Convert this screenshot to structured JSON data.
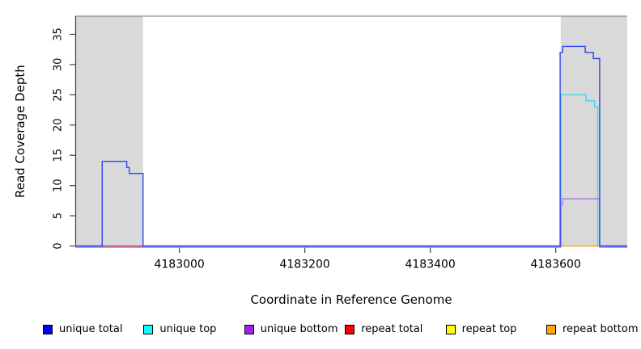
{
  "figure": {
    "xlabel": "Coordinate in Reference Genome",
    "ylabel": "Read Coverage Depth"
  },
  "chart_data": {
    "type": "line",
    "subtype": "step",
    "title": "",
    "xlabel": "Coordinate in Reference Genome",
    "ylabel": "Read Coverage Depth",
    "xlim": [
      4182834,
      4183714
    ],
    "ylim": [
      0,
      38
    ],
    "x_ticks": [
      4183000,
      4183200,
      4183400,
      4183600
    ],
    "y_ticks": [
      0,
      5,
      10,
      15,
      20,
      25,
      30,
      35
    ],
    "grid": false,
    "legend_position": "bottom",
    "shaded_regions": [
      {
        "name": "left-gray-band",
        "x0": 4182834,
        "x1": 4182942,
        "color": "#d9d9d9"
      },
      {
        "name": "right-gray-band",
        "x0": 4183608,
        "x1": 4183714,
        "color": "#d9d9d9"
      }
    ],
    "top_boundary_line": {
      "y": 38,
      "color": "#8f8f8f"
    },
    "series": [
      {
        "name": "unique total",
        "color": "#0000ff",
        "line_color": "#2a44ee",
        "points": [
          [
            4182834,
            0
          ],
          [
            4182877,
            0
          ],
          [
            4182877,
            14
          ],
          [
            4182916,
            14
          ],
          [
            4182916,
            13
          ],
          [
            4182920,
            13
          ],
          [
            4182920,
            12
          ],
          [
            4182942,
            12
          ],
          [
            4182942,
            0
          ],
          [
            4183607,
            0
          ],
          [
            4183607,
            32
          ],
          [
            4183611,
            32
          ],
          [
            4183611,
            33
          ],
          [
            4183647,
            33
          ],
          [
            4183647,
            32
          ],
          [
            4183660,
            32
          ],
          [
            4183660,
            31
          ],
          [
            4183670,
            31
          ],
          [
            4183670,
            0
          ],
          [
            4183714,
            0
          ]
        ]
      },
      {
        "name": "unique top",
        "color": "#00ffff",
        "line_color": "#3bd9e8",
        "points": [
          [
            4182834,
            0
          ],
          [
            4183608,
            0
          ],
          [
            4183608,
            25
          ],
          [
            4183648,
            25
          ],
          [
            4183648,
            24
          ],
          [
            4183662,
            24
          ],
          [
            4183662,
            23
          ],
          [
            4183667,
            23
          ],
          [
            4183667,
            0
          ],
          [
            4183714,
            0
          ]
        ]
      },
      {
        "name": "unique bottom",
        "color": "#a020f0",
        "line_color": "#ab76e8",
        "points": [
          [
            4182834,
            0
          ],
          [
            4183608,
            0
          ],
          [
            4183608,
            7
          ],
          [
            4183611,
            7
          ],
          [
            4183611,
            8
          ],
          [
            4183670,
            8
          ],
          [
            4183670,
            0
          ],
          [
            4183714,
            0
          ]
        ]
      },
      {
        "name": "repeat total",
        "color": "#ff0000",
        "line_color": "#ee4444",
        "points": [
          [
            4182877,
            0
          ],
          [
            4182942,
            0
          ]
        ]
      },
      {
        "name": "repeat top",
        "color": "#ffff00",
        "line_color": "#ffff00",
        "points": []
      },
      {
        "name": "repeat bottom",
        "color": "#ffa500",
        "line_color": "#ff9d2e",
        "points": [
          [
            4183608,
            0
          ],
          [
            4183670,
            0
          ]
        ]
      }
    ]
  },
  "legend": {
    "items": [
      {
        "label": "unique total",
        "color": "#0000ff"
      },
      {
        "label": "unique top",
        "color": "#00ffff"
      },
      {
        "label": "unique bottom",
        "color": "#a020f0"
      },
      {
        "label": "repeat total",
        "color": "#ff0000"
      },
      {
        "label": "repeat top",
        "color": "#ffff00"
      },
      {
        "label": "repeat bottom",
        "color": "#ffa500"
      }
    ]
  }
}
